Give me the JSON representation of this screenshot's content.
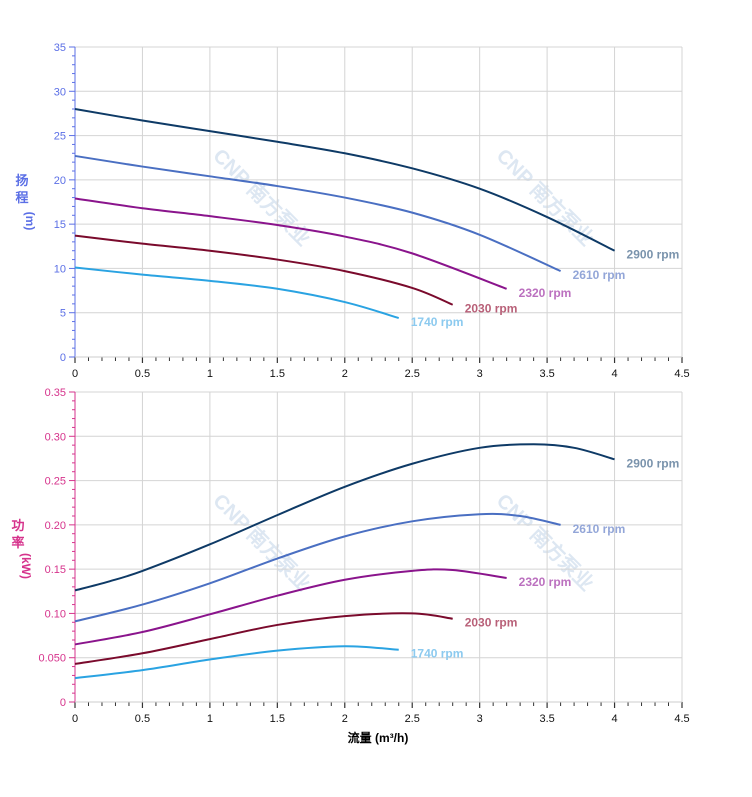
{
  "watermark": "CNP 南方泵业",
  "chart_data": [
    {
      "type": "line",
      "title": "",
      "ylabel_chars": [
        "扬",
        "程"
      ],
      "ylabel_unit": "(m)",
      "xlabel": "",
      "xlim": [
        0,
        4.5
      ],
      "ylim": [
        0,
        35
      ],
      "x_ticks": [
        "0",
        "0.5",
        "1",
        "1.5",
        "2",
        "2.5",
        "3",
        "3.5",
        "4",
        "4.5"
      ],
      "y_ticks": [
        "0",
        "5",
        "10",
        "15",
        "20",
        "25",
        "30",
        "35"
      ],
      "y_tick_values": [
        0,
        5,
        10,
        15,
        20,
        25,
        30,
        35
      ],
      "y_minor_step": 1,
      "grid": true,
      "axis_color": "#5b6fe6",
      "series": [
        {
          "name": "2900 rpm",
          "color": "#0e3a66",
          "label_color": "#7a93ac",
          "x": [
            0,
            0.5,
            1,
            1.5,
            2,
            2.5,
            3,
            3.5,
            4
          ],
          "y": [
            28,
            26.7,
            25.5,
            24.3,
            23,
            21.3,
            19,
            15.8,
            12
          ]
        },
        {
          "name": "2610 rpm",
          "color": "#4a6fc2",
          "label_color": "#93a6d8",
          "x": [
            0,
            0.5,
            1,
            1.5,
            2,
            2.5,
            3,
            3.6
          ],
          "y": [
            22.7,
            21.5,
            20.4,
            19.3,
            18,
            16.3,
            13.8,
            9.7
          ]
        },
        {
          "name": "2320 rpm",
          "color": "#8a148c",
          "label_color": "#bb70bf",
          "x": [
            0,
            0.5,
            1,
            1.5,
            2,
            2.5,
            3.2
          ],
          "y": [
            17.9,
            16.8,
            15.9,
            14.9,
            13.6,
            11.7,
            7.7
          ]
        },
        {
          "name": "2030 rpm",
          "color": "#7a0a2c",
          "label_color": "#b86078",
          "x": [
            0,
            0.5,
            1,
            1.5,
            2,
            2.5,
            2.8
          ],
          "y": [
            13.7,
            12.8,
            12,
            11,
            9.7,
            7.8,
            5.9
          ]
        },
        {
          "name": "1740 rpm",
          "color": "#2aa3e2",
          "label_color": "#8ccaef",
          "x": [
            0,
            0.5,
            1,
            1.5,
            2,
            2.4
          ],
          "y": [
            10.1,
            9.3,
            8.6,
            7.7,
            6.2,
            4.4
          ]
        }
      ]
    },
    {
      "type": "line",
      "title": "",
      "ylabel_chars": [
        "功",
        "率"
      ],
      "ylabel_unit": "(kW)",
      "xlabel": "流量 (m³/h)",
      "xlim": [
        0,
        4.5
      ],
      "ylim": [
        0,
        0.35
      ],
      "x_ticks": [
        "0",
        "0.5",
        "1",
        "1.5",
        "2",
        "2.5",
        "3",
        "3.5",
        "4",
        "4.5"
      ],
      "y_ticks": [
        "0",
        "0.050",
        "0.10",
        "0.15",
        "0.20",
        "0.25",
        "0.30",
        "0.35"
      ],
      "y_tick_values": [
        0,
        0.05,
        0.1,
        0.15,
        0.2,
        0.25,
        0.3,
        0.35
      ],
      "y_minor_step": 0.01,
      "grid": true,
      "axis_color": "#d6338c",
      "series": [
        {
          "name": "2900 rpm",
          "color": "#0e3a66",
          "label_color": "#7a93ac",
          "x": [
            0,
            0.25,
            0.5,
            1,
            1.5,
            2,
            2.5,
            3,
            3.4,
            3.7,
            4
          ],
          "y": [
            0.126,
            0.136,
            0.148,
            0.178,
            0.211,
            0.243,
            0.269,
            0.287,
            0.291,
            0.287,
            0.274
          ]
        },
        {
          "name": "2610 rpm",
          "color": "#4a6fc2",
          "label_color": "#93a6d8",
          "x": [
            0,
            0.5,
            1,
            1.5,
            2,
            2.5,
            3,
            3.3,
            3.6
          ],
          "y": [
            0.091,
            0.11,
            0.134,
            0.162,
            0.187,
            0.204,
            0.212,
            0.21,
            0.2
          ]
        },
        {
          "name": "2320 rpm",
          "color": "#8a148c",
          "label_color": "#bb70bf",
          "x": [
            0,
            0.5,
            1,
            1.5,
            2,
            2.5,
            2.8,
            3.2
          ],
          "y": [
            0.065,
            0.079,
            0.099,
            0.12,
            0.138,
            0.148,
            0.149,
            0.14
          ]
        },
        {
          "name": "2030 rpm",
          "color": "#7a0a2c",
          "label_color": "#b86078",
          "x": [
            0,
            0.5,
            1,
            1.5,
            2,
            2.5,
            2.8
          ],
          "y": [
            0.043,
            0.055,
            0.071,
            0.087,
            0.097,
            0.1,
            0.094
          ]
        },
        {
          "name": "1740 rpm",
          "color": "#2aa3e2",
          "label_color": "#8ccaef",
          "x": [
            0,
            0.5,
            1,
            1.5,
            2,
            2.4
          ],
          "y": [
            0.027,
            0.036,
            0.048,
            0.058,
            0.063,
            0.059
          ]
        }
      ]
    }
  ]
}
